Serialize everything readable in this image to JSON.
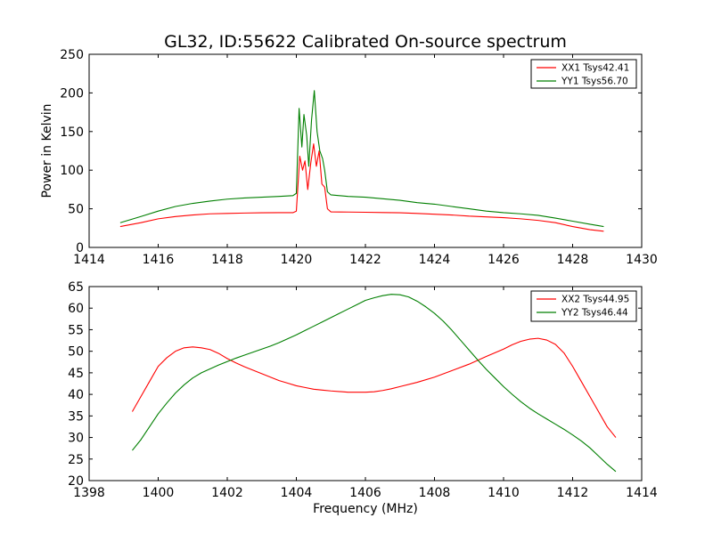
{
  "title": "GL32, ID:55622 Calibrated On-source spectrum",
  "colors": {
    "xx": "#ff0000",
    "yy": "#007f00",
    "axis": "#000000"
  },
  "chart_data": [
    {
      "type": "line",
      "ylabel": "Power in Kelvin",
      "xlabel": "",
      "xlim": [
        1414,
        1430
      ],
      "ylim": [
        0,
        250
      ],
      "xticks": [
        1414,
        1416,
        1418,
        1420,
        1422,
        1424,
        1426,
        1428,
        1430
      ],
      "yticks": [
        0,
        50,
        100,
        150,
        200,
        250
      ],
      "legend_position": "top-right",
      "series": [
        {
          "name": "XX1 Tsys42.41",
          "color": "#ff0000",
          "points": [
            [
              1414.9,
              27
            ],
            [
              1415.5,
              32
            ],
            [
              1416,
              37
            ],
            [
              1416.5,
              40
            ],
            [
              1417,
              42
            ],
            [
              1417.5,
              43.5
            ],
            [
              1418,
              44
            ],
            [
              1418.5,
              44.5
            ],
            [
              1419,
              44.8
            ],
            [
              1419.5,
              45
            ],
            [
              1419.9,
              45
            ],
            [
              1420.0,
              47
            ],
            [
              1420.1,
              118
            ],
            [
              1420.18,
              100
            ],
            [
              1420.25,
              112
            ],
            [
              1420.33,
              75
            ],
            [
              1420.42,
              110
            ],
            [
              1420.5,
              134
            ],
            [
              1420.58,
              105
            ],
            [
              1420.66,
              125
            ],
            [
              1420.74,
              82
            ],
            [
              1420.82,
              78
            ],
            [
              1420.9,
              50
            ],
            [
              1421,
              46
            ],
            [
              1421.5,
              45.8
            ],
            [
              1422,
              45.5
            ],
            [
              1422.5,
              45.2
            ],
            [
              1423,
              44.8
            ],
            [
              1423.5,
              44
            ],
            [
              1424,
              43
            ],
            [
              1424.5,
              42
            ],
            [
              1425,
              40.5
            ],
            [
              1425.5,
              39.5
            ],
            [
              1426,
              38.5
            ],
            [
              1426.5,
              37
            ],
            [
              1427,
              35
            ],
            [
              1427.5,
              32
            ],
            [
              1428,
              27
            ],
            [
              1428.5,
              23
            ],
            [
              1428.9,
              21
            ]
          ]
        },
        {
          "name": "YY1 Tsys56.70",
          "color": "#007f00",
          "points": [
            [
              1414.9,
              32
            ],
            [
              1415.5,
              40
            ],
            [
              1416,
              47
            ],
            [
              1416.5,
              53
            ],
            [
              1417,
              57
            ],
            [
              1417.5,
              60
            ],
            [
              1418,
              62.5
            ],
            [
              1418.5,
              64
            ],
            [
              1419,
              65
            ],
            [
              1419.5,
              66
            ],
            [
              1419.9,
              67
            ],
            [
              1420.0,
              70
            ],
            [
              1420.08,
              180
            ],
            [
              1420.16,
              130
            ],
            [
              1420.22,
              172
            ],
            [
              1420.3,
              145
            ],
            [
              1420.36,
              105
            ],
            [
              1420.44,
              165
            ],
            [
              1420.52,
              203
            ],
            [
              1420.6,
              150
            ],
            [
              1420.68,
              125
            ],
            [
              1420.76,
              115
            ],
            [
              1420.82,
              100
            ],
            [
              1420.9,
              72
            ],
            [
              1421,
              68
            ],
            [
              1421.5,
              66
            ],
            [
              1422,
              65
            ],
            [
              1422.5,
              63
            ],
            [
              1423,
              61
            ],
            [
              1423.5,
              58
            ],
            [
              1424,
              56
            ],
            [
              1424.5,
              53
            ],
            [
              1425,
              50
            ],
            [
              1425.5,
              47
            ],
            [
              1426,
              45
            ],
            [
              1426.5,
              43.5
            ],
            [
              1427,
              41.5
            ],
            [
              1427.5,
              38
            ],
            [
              1428,
              34
            ],
            [
              1428.5,
              30
            ],
            [
              1428.9,
              27
            ]
          ]
        }
      ]
    },
    {
      "type": "line",
      "ylabel": "",
      "xlabel": "Frequency (MHz)",
      "xlim": [
        1398,
        1414
      ],
      "ylim": [
        20,
        65
      ],
      "xticks": [
        1398,
        1400,
        1402,
        1404,
        1406,
        1408,
        1410,
        1412,
        1414
      ],
      "yticks": [
        20,
        25,
        30,
        35,
        40,
        45,
        50,
        55,
        60,
        65
      ],
      "legend_position": "top-right",
      "series": [
        {
          "name": "XX2 Tsys44.95",
          "color": "#ff0000",
          "points": [
            [
              1399.25,
              36
            ],
            [
              1399.5,
              39.5
            ],
            [
              1399.75,
              43
            ],
            [
              1400,
              46.5
            ],
            [
              1400.25,
              48.5
            ],
            [
              1400.5,
              50
            ],
            [
              1400.75,
              50.8
            ],
            [
              1401,
              51
            ],
            [
              1401.25,
              50.8
            ],
            [
              1401.5,
              50.4
            ],
            [
              1401.75,
              49.5
            ],
            [
              1402,
              48.3
            ],
            [
              1402.25,
              47.3
            ],
            [
              1402.5,
              46.4
            ],
            [
              1402.75,
              45.6
            ],
            [
              1403,
              44.8
            ],
            [
              1403.25,
              44
            ],
            [
              1403.5,
              43.2
            ],
            [
              1403.75,
              42.6
            ],
            [
              1404,
              42
            ],
            [
              1404.25,
              41.6
            ],
            [
              1404.5,
              41.2
            ],
            [
              1404.75,
              41
            ],
            [
              1405,
              40.8
            ],
            [
              1405.5,
              40.5
            ],
            [
              1406,
              40.5
            ],
            [
              1406.25,
              40.6
            ],
            [
              1406.5,
              40.9
            ],
            [
              1406.75,
              41.3
            ],
            [
              1407,
              41.8
            ],
            [
              1407.5,
              42.8
            ],
            [
              1408,
              44
            ],
            [
              1408.5,
              45.5
            ],
            [
              1409,
              47
            ],
            [
              1409.5,
              48.8
            ],
            [
              1410,
              50.5
            ],
            [
              1410.25,
              51.5
            ],
            [
              1410.5,
              52.3
            ],
            [
              1410.75,
              52.8
            ],
            [
              1411,
              53
            ],
            [
              1411.25,
              52.6
            ],
            [
              1411.5,
              51.6
            ],
            [
              1411.75,
              49.6
            ],
            [
              1412,
              46.5
            ],
            [
              1412.25,
              43
            ],
            [
              1412.5,
              39.5
            ],
            [
              1412.75,
              36
            ],
            [
              1413,
              32.5
            ],
            [
              1413.25,
              30
            ]
          ]
        },
        {
          "name": "YY2 Tsys46.44",
          "color": "#007f00",
          "points": [
            [
              1399.25,
              27
            ],
            [
              1399.5,
              29.5
            ],
            [
              1399.75,
              32.5
            ],
            [
              1400,
              35.5
            ],
            [
              1400.25,
              38
            ],
            [
              1400.5,
              40.3
            ],
            [
              1400.75,
              42.2
            ],
            [
              1401,
              43.8
            ],
            [
              1401.25,
              45
            ],
            [
              1401.5,
              45.9
            ],
            [
              1401.75,
              46.8
            ],
            [
              1402,
              47.6
            ],
            [
              1402.25,
              48.4
            ],
            [
              1402.5,
              49.1
            ],
            [
              1402.75,
              49.8
            ],
            [
              1403,
              50.5
            ],
            [
              1403.25,
              51.2
            ],
            [
              1403.5,
              52
            ],
            [
              1403.75,
              52.9
            ],
            [
              1404,
              53.8
            ],
            [
              1404.25,
              54.8
            ],
            [
              1404.5,
              55.8
            ],
            [
              1404.75,
              56.8
            ],
            [
              1405,
              57.8
            ],
            [
              1405.25,
              58.8
            ],
            [
              1405.5,
              59.8
            ],
            [
              1405.75,
              60.8
            ],
            [
              1406,
              61.8
            ],
            [
              1406.25,
              62.4
            ],
            [
              1406.5,
              62.9
            ],
            [
              1406.75,
              63.2
            ],
            [
              1407,
              63.1
            ],
            [
              1407.25,
              62.6
            ],
            [
              1407.5,
              61.6
            ],
            [
              1407.75,
              60.3
            ],
            [
              1408,
              58.8
            ],
            [
              1408.25,
              57
            ],
            [
              1408.5,
              54.9
            ],
            [
              1408.75,
              52.6
            ],
            [
              1409,
              50.3
            ],
            [
              1409.25,
              48
            ],
            [
              1409.5,
              45.8
            ],
            [
              1409.75,
              43.8
            ],
            [
              1410,
              41.8
            ],
            [
              1410.25,
              40
            ],
            [
              1410.5,
              38.3
            ],
            [
              1410.75,
              36.8
            ],
            [
              1411,
              35.5
            ],
            [
              1411.25,
              34.3
            ],
            [
              1411.5,
              33.1
            ],
            [
              1411.75,
              31.9
            ],
            [
              1412,
              30.6
            ],
            [
              1412.25,
              29.2
            ],
            [
              1412.5,
              27.6
            ],
            [
              1412.75,
              25.7
            ],
            [
              1413,
              23.8
            ],
            [
              1413.25,
              22.1
            ]
          ]
        }
      ]
    }
  ]
}
